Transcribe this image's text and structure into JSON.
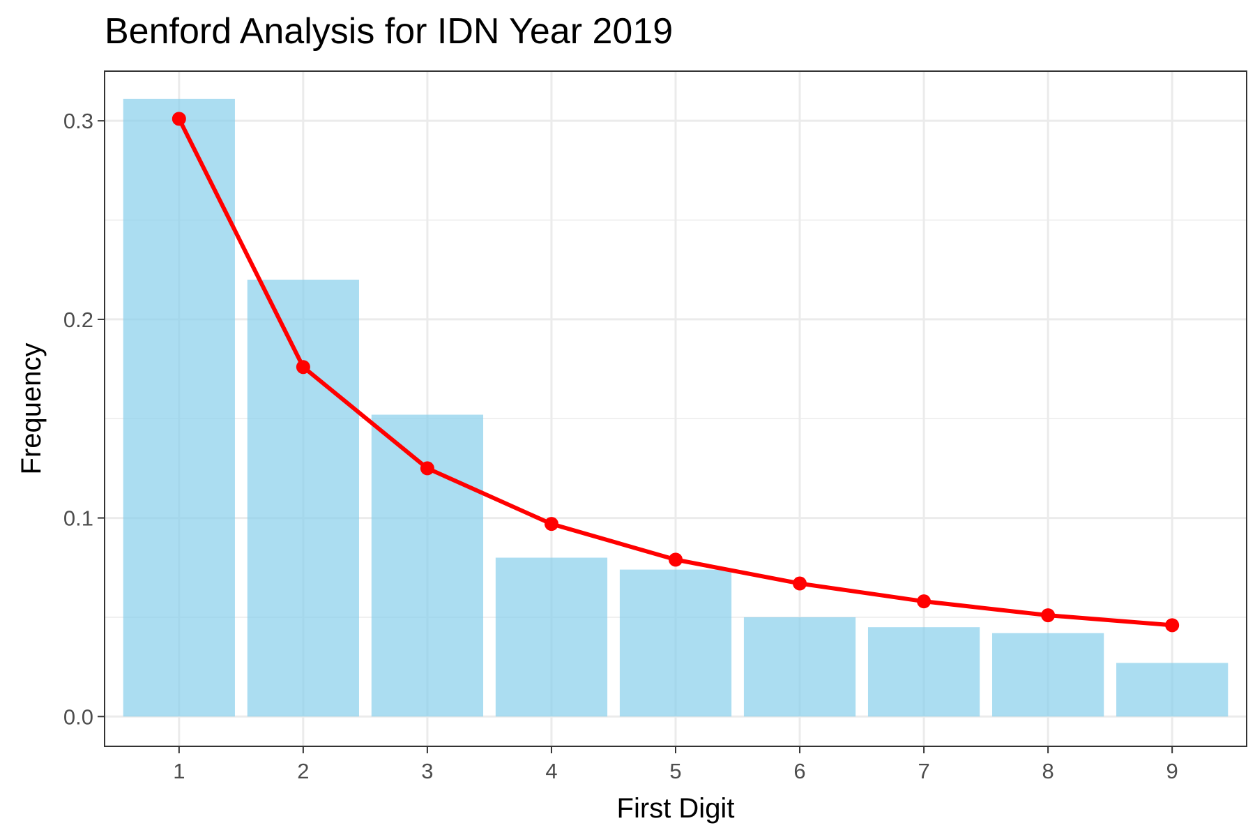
{
  "chart_data": {
    "type": "bar",
    "title": "Benford Analysis for IDN Year 2019",
    "xlabel": "First Digit",
    "ylabel": "Frequency",
    "categories": [
      "1",
      "2",
      "3",
      "4",
      "5",
      "6",
      "7",
      "8",
      "9"
    ],
    "x": [
      1,
      2,
      3,
      4,
      5,
      6,
      7,
      8,
      9
    ],
    "ylim": [
      -0.015,
      0.325
    ],
    "y_ticks": [
      0.0,
      0.1,
      0.2,
      0.3
    ],
    "y_tick_labels": [
      "0.0",
      "0.1",
      "0.2",
      "0.3"
    ],
    "grid": true,
    "legend": "none",
    "series": [
      {
        "type": "bar",
        "values": [
          0.311,
          0.22,
          0.152,
          0.08,
          0.074,
          0.05,
          0.045,
          0.042,
          0.027
        ],
        "color": "#87CEEB"
      },
      {
        "type": "line",
        "values": [
          0.301,
          0.176,
          0.125,
          0.097,
          0.079,
          0.067,
          0.058,
          0.051,
          0.046
        ],
        "color": "#FF0000"
      }
    ]
  }
}
